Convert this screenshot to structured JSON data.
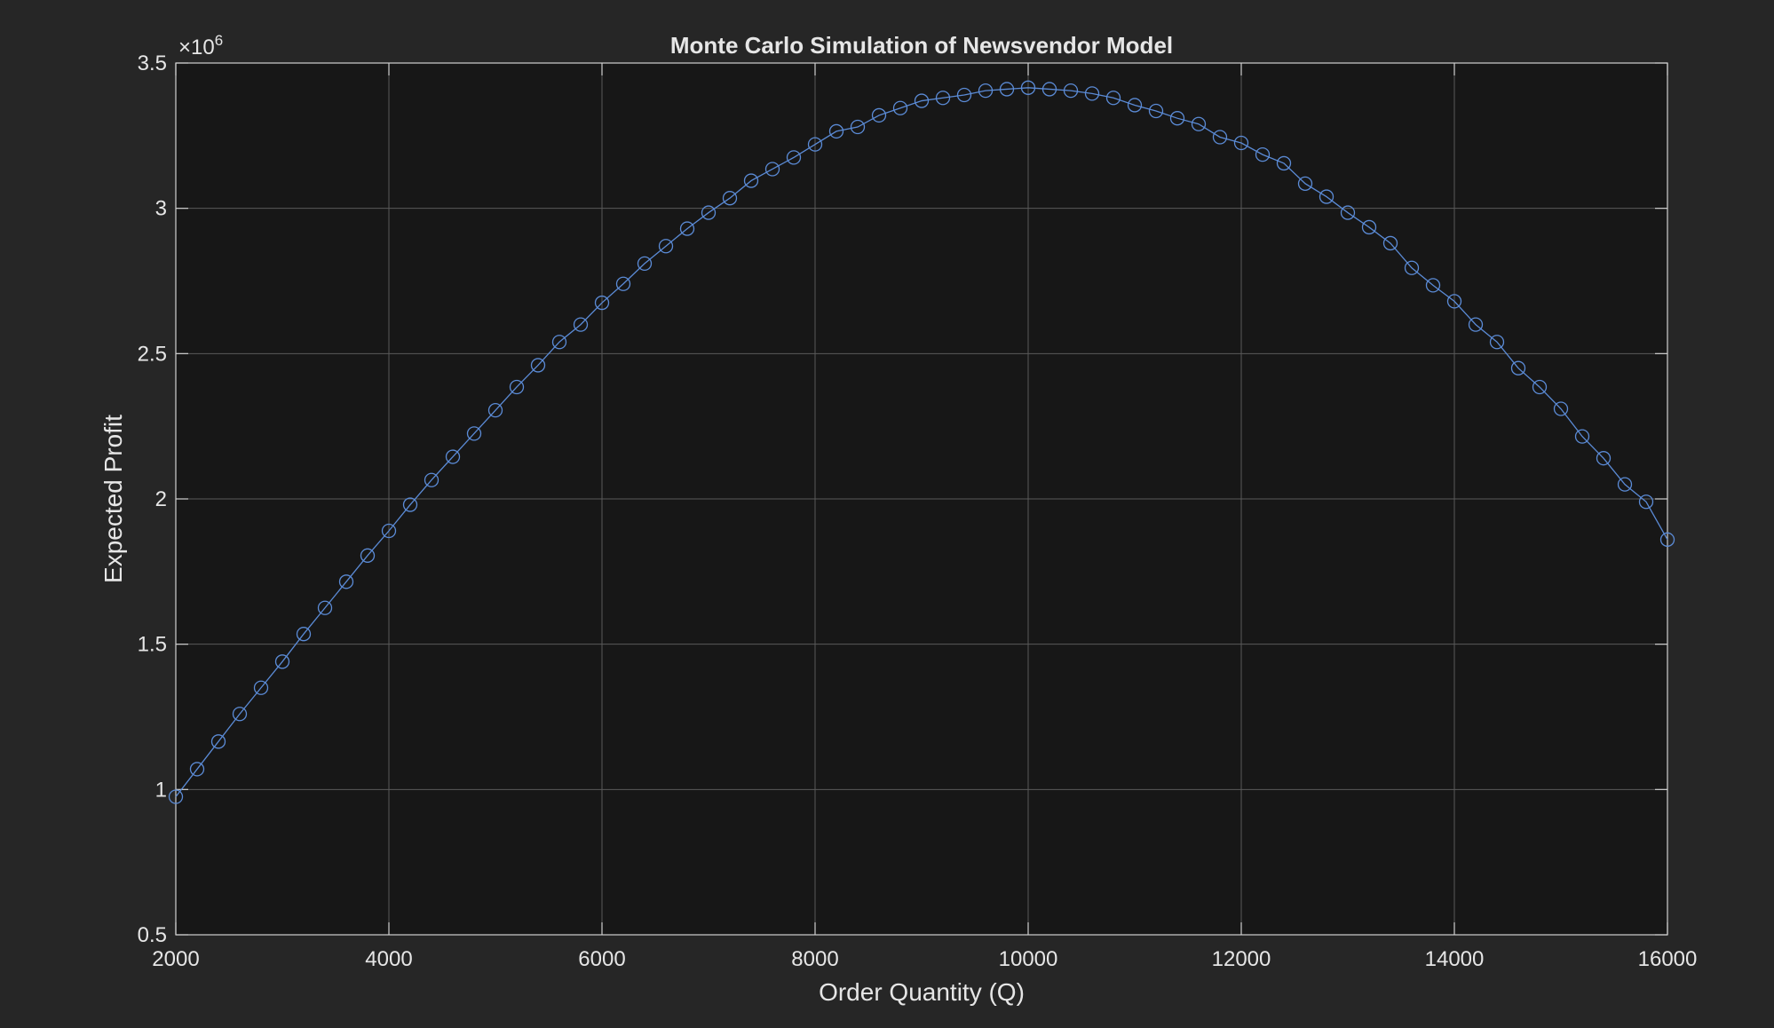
{
  "chart_data": {
    "type": "line",
    "title": "Monte Carlo Simulation of Newsvendor Model",
    "xlabel": "Order Quantity (Q)",
    "ylabel": "Expected Profit",
    "y_exponent_label": "×10",
    "y_exponent_power": "6",
    "xlim": [
      2000,
      16000
    ],
    "ylim": [
      0.5,
      3.5
    ],
    "y_scale": 1000000,
    "grid": true,
    "marker": "circle",
    "line_color": "#5b8bd6",
    "background_color": "#262626",
    "axes_color": "#171717",
    "grid_color": "#5a5a5a",
    "text_color": "#e6e6e6",
    "x_ticks": [
      "2000",
      "4000",
      "6000",
      "8000",
      "10000",
      "12000",
      "14000",
      "16000"
    ],
    "y_ticks": [
      "0.5",
      "1",
      "1.5",
      "2",
      "2.5",
      "3",
      "3.5"
    ],
    "series": [
      {
        "x": [
          2000,
          2200,
          2400,
          2600,
          2800,
          3000,
          3200,
          3400,
          3600,
          3800,
          4000,
          4200,
          4400,
          4600,
          4800,
          5000,
          5200,
          5400,
          5600,
          5800,
          6000,
          6200,
          6400,
          6600,
          6800,
          7000,
          7200,
          7400,
          7600,
          7800,
          8000,
          8200,
          8400,
          8600,
          8800,
          9000,
          9200,
          9400,
          9600,
          9800,
          10000,
          10200,
          10400,
          10600,
          10800,
          11000,
          11200,
          11400,
          11600,
          11800,
          12000,
          12200,
          12400,
          12600,
          12800,
          13000,
          13200,
          13400,
          13600,
          13800,
          14000,
          14200,
          14400,
          14600,
          14800,
          15000,
          15200,
          15400,
          15600,
          15800,
          16000
        ],
        "values": [
          0.975,
          1.07,
          1.165,
          1.26,
          1.35,
          1.44,
          1.535,
          1.625,
          1.715,
          1.805,
          1.89,
          1.98,
          2.065,
          2.145,
          2.225,
          2.305,
          2.385,
          2.46,
          2.54,
          2.6,
          2.675,
          2.74,
          2.81,
          2.87,
          2.93,
          2.985,
          3.035,
          3.095,
          3.135,
          3.175,
          3.22,
          3.265,
          3.28,
          3.32,
          3.345,
          3.37,
          3.38,
          3.39,
          3.405,
          3.41,
          3.415,
          3.41,
          3.405,
          3.395,
          3.38,
          3.355,
          3.335,
          3.31,
          3.29,
          3.245,
          3.225,
          3.185,
          3.155,
          3.085,
          3.04,
          2.985,
          2.935,
          2.88,
          2.795,
          2.735,
          2.68,
          2.6,
          2.54,
          2.45,
          2.385,
          2.31,
          2.215,
          2.14,
          2.05,
          1.99,
          1.86
        ]
      }
    ]
  }
}
